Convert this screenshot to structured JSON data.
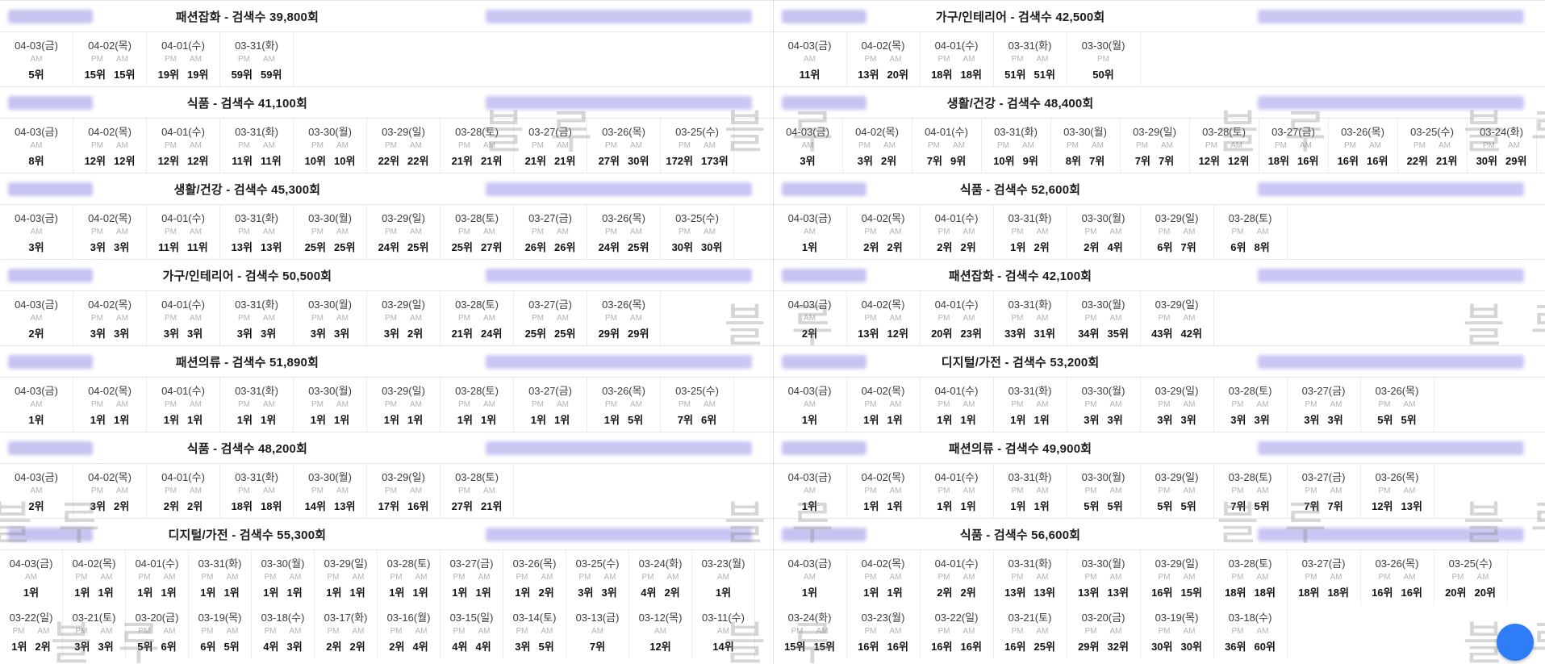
{
  "labels": {
    "pm": "PM",
    "am": "AM"
  },
  "watermark": {
    "text": "블루"
  },
  "colors": {
    "keyword_blur": "#c6c3f1",
    "detail_blur": "#c9c6f4",
    "fab_blue": "#2e7cf6",
    "title_text": "#1c1c1c",
    "rank_text": "#121212",
    "ampm_gray": "#b3b3b3"
  },
  "columns": [
    {
      "panels": [
        {
          "title": "패션잡화 - 검색수 39,800회",
          "rows": [
            [
              {
                "d": "04-03(금)",
                "am": "5위"
              },
              {
                "d": "04-02(목)",
                "pm": "15위",
                "am": "15위"
              },
              {
                "d": "04-01(수)",
                "pm": "19위",
                "am": "19위"
              },
              {
                "d": "03-31(화)",
                "pm": "59위",
                "am": "59위"
              }
            ]
          ]
        },
        {
          "title": "식품 - 검색수 41,100회",
          "rows": [
            [
              {
                "d": "04-03(금)",
                "am": "8위"
              },
              {
                "d": "04-02(목)",
                "pm": "12위",
                "am": "12위"
              },
              {
                "d": "04-01(수)",
                "pm": "12위",
                "am": "12위"
              },
              {
                "d": "03-31(화)",
                "pm": "11위",
                "am": "11위"
              },
              {
                "d": "03-30(월)",
                "pm": "10위",
                "am": "10위"
              },
              {
                "d": "03-29(일)",
                "pm": "22위",
                "am": "22위"
              },
              {
                "d": "03-28(토)",
                "pm": "21위",
                "am": "21위"
              },
              {
                "d": "03-27(금)",
                "pm": "21위",
                "am": "21위"
              },
              {
                "d": "03-26(목)",
                "pm": "27위",
                "am": "30위"
              },
              {
                "d": "03-25(수)",
                "pm": "172위",
                "am": "173위"
              }
            ]
          ]
        },
        {
          "title": "생활/건강 - 검색수 45,300회",
          "rows": [
            [
              {
                "d": "04-03(금)",
                "am": "3위"
              },
              {
                "d": "04-02(목)",
                "pm": "3위",
                "am": "3위"
              },
              {
                "d": "04-01(수)",
                "pm": "11위",
                "am": "11위"
              },
              {
                "d": "03-31(화)",
                "pm": "13위",
                "am": "13위"
              },
              {
                "d": "03-30(월)",
                "pm": "25위",
                "am": "25위"
              },
              {
                "d": "03-29(일)",
                "pm": "24위",
                "am": "25위"
              },
              {
                "d": "03-28(토)",
                "pm": "25위",
                "am": "27위"
              },
              {
                "d": "03-27(금)",
                "pm": "26위",
                "am": "26위"
              },
              {
                "d": "03-26(목)",
                "pm": "24위",
                "am": "25위"
              },
              {
                "d": "03-25(수)",
                "pm": "30위",
                "am": "30위"
              }
            ]
          ]
        },
        {
          "title": "가구/인테리어 - 검색수 50,500회",
          "rows": [
            [
              {
                "d": "04-03(금)",
                "am": "2위"
              },
              {
                "d": "04-02(목)",
                "pm": "3위",
                "am": "3위"
              },
              {
                "d": "04-01(수)",
                "pm": "3위",
                "am": "3위"
              },
              {
                "d": "03-31(화)",
                "pm": "3위",
                "am": "3위"
              },
              {
                "d": "03-30(월)",
                "pm": "3위",
                "am": "3위"
              },
              {
                "d": "03-29(일)",
                "pm": "3위",
                "am": "2위"
              },
              {
                "d": "03-28(토)",
                "pm": "21위",
                "am": "24위"
              },
              {
                "d": "03-27(금)",
                "pm": "25위",
                "am": "25위"
              },
              {
                "d": "03-26(목)",
                "pm": "29위",
                "am": "29위"
              }
            ]
          ]
        },
        {
          "title": "패션의류 - 검색수 51,890회",
          "rows": [
            [
              {
                "d": "04-03(금)",
                "am": "1위"
              },
              {
                "d": "04-02(목)",
                "pm": "1위",
                "am": "1위"
              },
              {
                "d": "04-01(수)",
                "pm": "1위",
                "am": "1위"
              },
              {
                "d": "03-31(화)",
                "pm": "1위",
                "am": "1위"
              },
              {
                "d": "03-30(월)",
                "pm": "1위",
                "am": "1위"
              },
              {
                "d": "03-29(일)",
                "pm": "1위",
                "am": "1위"
              },
              {
                "d": "03-28(토)",
                "pm": "1위",
                "am": "1위"
              },
              {
                "d": "03-27(금)",
                "pm": "1위",
                "am": "1위"
              },
              {
                "d": "03-26(목)",
                "pm": "1위",
                "am": "5위"
              },
              {
                "d": "03-25(수)",
                "pm": "7위",
                "am": "6위"
              }
            ]
          ]
        },
        {
          "title": "식품 - 검색수 48,200회",
          "rows": [
            [
              {
                "d": "04-03(금)",
                "am": "2위"
              },
              {
                "d": "04-02(목)",
                "pm": "3위",
                "am": "2위"
              },
              {
                "d": "04-01(수)",
                "pm": "2위",
                "am": "2위"
              },
              {
                "d": "03-31(화)",
                "pm": "18위",
                "am": "18위"
              },
              {
                "d": "03-30(월)",
                "pm": "14위",
                "am": "13위"
              },
              {
                "d": "03-29(일)",
                "pm": "17위",
                "am": "16위"
              },
              {
                "d": "03-28(토)",
                "pm": "27위",
                "am": "21위"
              }
            ]
          ]
        },
        {
          "title": "디지털/가전 - 검색수 55,300회",
          "rows": [
            [
              {
                "d": "04-03(금)",
                "am": "1위"
              },
              {
                "d": "04-02(목)",
                "pm": "1위",
                "am": "1위"
              },
              {
                "d": "04-01(수)",
                "pm": "1위",
                "am": "1위"
              },
              {
                "d": "03-31(화)",
                "pm": "1위",
                "am": "1위"
              },
              {
                "d": "03-30(월)",
                "pm": "1위",
                "am": "1위"
              },
              {
                "d": "03-29(일)",
                "pm": "1위",
                "am": "1위"
              },
              {
                "d": "03-28(토)",
                "pm": "1위",
                "am": "1위"
              },
              {
                "d": "03-27(금)",
                "pm": "1위",
                "am": "1위"
              },
              {
                "d": "03-26(목)",
                "pm": "1위",
                "am": "2위"
              },
              {
                "d": "03-25(수)",
                "pm": "3위",
                "am": "3위"
              },
              {
                "d": "03-24(화)",
                "pm": "4위",
                "am": "2위"
              },
              {
                "d": "03-23(월)",
                "am": "1위"
              }
            ],
            [
              {
                "d": "03-22(일)",
                "pm": "1위",
                "am": "2위"
              },
              {
                "d": "03-21(토)",
                "pm": "3위",
                "am": "3위"
              },
              {
                "d": "03-20(금)",
                "pm": "5위",
                "am": "6위"
              },
              {
                "d": "03-19(목)",
                "pm": "6위",
                "am": "5위"
              },
              {
                "d": "03-18(수)",
                "pm": "4위",
                "am": "3위"
              },
              {
                "d": "03-17(화)",
                "pm": "2위",
                "am": "2위"
              },
              {
                "d": "03-16(월)",
                "pm": "2위",
                "am": "4위"
              },
              {
                "d": "03-15(일)",
                "pm": "4위",
                "am": "4위"
              },
              {
                "d": "03-14(토)",
                "pm": "3위",
                "am": "5위"
              },
              {
                "d": "03-13(금)",
                "am": "7위"
              },
              {
                "d": "03-12(목)",
                "am": "12위"
              },
              {
                "d": "03-11(수)",
                "am": "14위"
              }
            ]
          ]
        }
      ]
    },
    {
      "panels": [
        {
          "title": "가구/인테리어 - 검색수 42,500회",
          "rows": [
            [
              {
                "d": "04-03(금)",
                "am": "11위"
              },
              {
                "d": "04-02(목)",
                "pm": "13위",
                "am": "20위"
              },
              {
                "d": "04-01(수)",
                "pm": "18위",
                "am": "18위"
              },
              {
                "d": "03-31(화)",
                "pm": "51위",
                "am": "51위"
              },
              {
                "d": "03-30(월)",
                "pm": "50위"
              }
            ]
          ]
        },
        {
          "title": "생활/건강 - 검색수 48,400회",
          "rows": [
            [
              {
                "d": "04-03(금)",
                "am": "3위"
              },
              {
                "d": "04-02(목)",
                "pm": "3위",
                "am": "2위"
              },
              {
                "d": "04-01(수)",
                "pm": "7위",
                "am": "9위"
              },
              {
                "d": "03-31(화)",
                "pm": "10위",
                "am": "9위"
              },
              {
                "d": "03-30(월)",
                "pm": "8위",
                "am": "7위"
              },
              {
                "d": "03-29(일)",
                "pm": "7위",
                "am": "7위"
              },
              {
                "d": "03-28(토)",
                "pm": "12위",
                "am": "12위"
              },
              {
                "d": "03-27(금)",
                "pm": "18위",
                "am": "16위"
              },
              {
                "d": "03-26(목)",
                "pm": "16위",
                "am": "16위"
              },
              {
                "d": "03-25(수)",
                "pm": "22위",
                "am": "21위"
              },
              {
                "d": "03-24(화)",
                "pm": "30위",
                "am": "29위"
              }
            ]
          ]
        },
        {
          "title": "식품 - 검색수 52,600회",
          "rows": [
            [
              {
                "d": "04-03(금)",
                "am": "1위"
              },
              {
                "d": "04-02(목)",
                "pm": "2위",
                "am": "2위"
              },
              {
                "d": "04-01(수)",
                "pm": "2위",
                "am": "2위"
              },
              {
                "d": "03-31(화)",
                "pm": "1위",
                "am": "2위"
              },
              {
                "d": "03-30(월)",
                "pm": "2위",
                "am": "4위"
              },
              {
                "d": "03-29(일)",
                "pm": "6위",
                "am": "7위"
              },
              {
                "d": "03-28(토)",
                "pm": "6위",
                "am": "8위"
              }
            ]
          ]
        },
        {
          "title": "패션잡화 - 검색수 42,100회",
          "rows": [
            [
              {
                "d": "04-03(금)",
                "am": "2위"
              },
              {
                "d": "04-02(목)",
                "pm": "13위",
                "am": "12위"
              },
              {
                "d": "04-01(수)",
                "pm": "20위",
                "am": "23위"
              },
              {
                "d": "03-31(화)",
                "pm": "33위",
                "am": "31위"
              },
              {
                "d": "03-30(월)",
                "pm": "34위",
                "am": "35위"
              },
              {
                "d": "03-29(일)",
                "pm": "43위",
                "am": "42위"
              }
            ]
          ]
        },
        {
          "title": "디지털/가전 - 검색수 53,200회",
          "rows": [
            [
              {
                "d": "04-03(금)",
                "am": "1위"
              },
              {
                "d": "04-02(목)",
                "pm": "1위",
                "am": "1위"
              },
              {
                "d": "04-01(수)",
                "pm": "1위",
                "am": "1위"
              },
              {
                "d": "03-31(화)",
                "pm": "1위",
                "am": "1위"
              },
              {
                "d": "03-30(월)",
                "pm": "3위",
                "am": "3위"
              },
              {
                "d": "03-29(일)",
                "pm": "3위",
                "am": "3위"
              },
              {
                "d": "03-28(토)",
                "pm": "3위",
                "am": "3위"
              },
              {
                "d": "03-27(금)",
                "pm": "3위",
                "am": "3위"
              },
              {
                "d": "03-26(목)",
                "pm": "5위",
                "am": "5위"
              }
            ]
          ]
        },
        {
          "title": "패션의류 - 검색수 49,900회",
          "rows": [
            [
              {
                "d": "04-03(금)",
                "am": "1위"
              },
              {
                "d": "04-02(목)",
                "pm": "1위",
                "am": "1위"
              },
              {
                "d": "04-01(수)",
                "pm": "1위",
                "am": "1위"
              },
              {
                "d": "03-31(화)",
                "pm": "1위",
                "am": "1위"
              },
              {
                "d": "03-30(월)",
                "pm": "5위",
                "am": "5위"
              },
              {
                "d": "03-29(일)",
                "pm": "5위",
                "am": "5위"
              },
              {
                "d": "03-28(토)",
                "pm": "7위",
                "am": "5위"
              },
              {
                "d": "03-27(금)",
                "pm": "7위",
                "am": "7위"
              },
              {
                "d": "03-26(목)",
                "pm": "12위",
                "am": "13위"
              }
            ]
          ]
        },
        {
          "title": "식품 - 검색수 56,600회",
          "rows": [
            [
              {
                "d": "04-03(금)",
                "am": "1위"
              },
              {
                "d": "04-02(목)",
                "pm": "1위",
                "am": "1위"
              },
              {
                "d": "04-01(수)",
                "pm": "2위",
                "am": "2위"
              },
              {
                "d": "03-31(화)",
                "pm": "13위",
                "am": "13위"
              },
              {
                "d": "03-30(월)",
                "pm": "13위",
                "am": "13위"
              },
              {
                "d": "03-29(일)",
                "pm": "16위",
                "am": "15위"
              },
              {
                "d": "03-28(토)",
                "pm": "18위",
                "am": "18위"
              },
              {
                "d": "03-27(금)",
                "pm": "18위",
                "am": "18위"
              },
              {
                "d": "03-26(목)",
                "pm": "16위",
                "am": "16위"
              },
              {
                "d": "03-25(수)",
                "pm": "20위",
                "am": "20위"
              }
            ],
            [
              {
                "d": "03-24(화)",
                "pm": "15위",
                "am": "15위"
              },
              {
                "d": "03-23(월)",
                "pm": "16위",
                "am": "16위"
              },
              {
                "d": "03-22(일)",
                "pm": "16위",
                "am": "16위"
              },
              {
                "d": "03-21(토)",
                "pm": "16위",
                "am": "25위"
              },
              {
                "d": "03-20(금)",
                "pm": "29위",
                "am": "32위"
              },
              {
                "d": "03-19(목)",
                "pm": "30위",
                "am": "30위"
              },
              {
                "d": "03-18(수)",
                "pm": "36위",
                "am": "60위"
              }
            ]
          ]
        }
      ]
    }
  ]
}
